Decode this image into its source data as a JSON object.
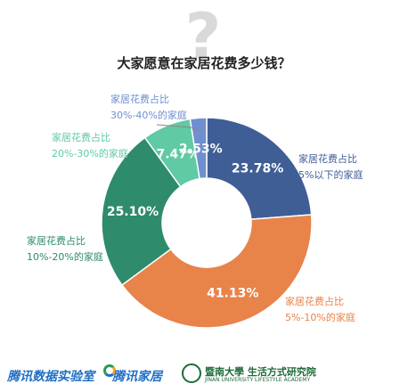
{
  "chart_data": {
    "type": "pie",
    "title": "大家愿意在家居花费多少钱？",
    "slices": [
      {
        "label_lines": [
          "家居花费占比",
          "5%以下的家庭"
        ],
        "value": 23.78,
        "display": "23.78%",
        "color": "#3f5e96"
      },
      {
        "label_lines": [
          "家居花费占比",
          "5%-10%的家庭"
        ],
        "value": 41.13,
        "display": "41.13%",
        "color": "#e8834a"
      },
      {
        "label_lines": [
          "家居花费占比",
          "10%-20%的家庭"
        ],
        "value": 25.1,
        "display": "25.10%",
        "color": "#2e8b6b"
      },
      {
        "label_lines": [
          "家居花费占比",
          "20%-30%的家庭"
        ],
        "value": 7.47,
        "display": "7.47%",
        "color": "#5fcaa4"
      },
      {
        "label_lines": [
          "家居花费占比",
          "30%-40%的家庭"
        ],
        "value": 2.53,
        "display": "2.53%",
        "color": "#6f8fcf"
      }
    ],
    "legend": "none"
  },
  "decor": {
    "question_mark": "?"
  },
  "footer": {
    "brand1": "腾讯数据实验室",
    "brand2": "腾讯家居",
    "brand3_main": "暨南大學 生活方式研究院",
    "brand3_sub": "JINAN UNIVERSITY LIFESTYLE ACADEMY"
  }
}
